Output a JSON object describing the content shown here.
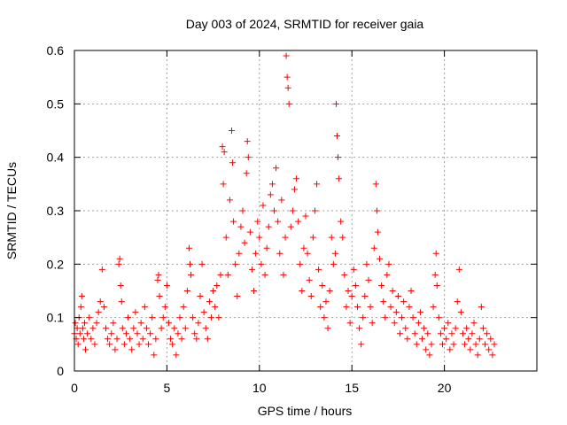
{
  "chart_data": {
    "type": "scatter",
    "title": "Day 003 of 2024, SRMTID for receiver gaia",
    "xlabel": "GPS time / hours",
    "ylabel": "SRMTID / TECUs",
    "xlim": [
      0,
      25
    ],
    "ylim": [
      0,
      0.6
    ],
    "x_ticks": [
      0,
      5,
      10,
      15,
      20
    ],
    "y_ticks": [
      0,
      0.1,
      0.2,
      0.3,
      0.4,
      0.5,
      0.6
    ],
    "x_tick_labels": [
      "0",
      "5",
      "10",
      "15",
      "20"
    ],
    "y_tick_labels": [
      "0",
      "0.1",
      "0.2",
      "0.3",
      "0.4",
      "0.5",
      "0.6"
    ],
    "grid": true,
    "marker": "plus",
    "series_color": "#ff0000",
    "series": [
      {
        "name": "SRMTID",
        "points": [
          [
            0.0,
            0.07
          ],
          [
            0.05,
            0.09
          ],
          [
            0.1,
            0.06
          ],
          [
            0.15,
            0.08
          ],
          [
            0.2,
            0.05
          ],
          [
            0.25,
            0.1
          ],
          [
            0.3,
            0.07
          ],
          [
            0.35,
            0.12
          ],
          [
            0.4,
            0.14
          ],
          [
            0.45,
            0.08
          ],
          [
            0.5,
            0.06
          ],
          [
            0.55,
            0.09
          ],
          [
            0.6,
            0.04
          ],
          [
            0.7,
            0.07
          ],
          [
            0.8,
            0.1
          ],
          [
            0.9,
            0.06
          ],
          [
            1.0,
            0.08
          ],
          [
            1.1,
            0.05
          ],
          [
            1.2,
            0.09
          ],
          [
            1.3,
            0.11
          ],
          [
            1.4,
            0.13
          ],
          [
            1.5,
            0.19
          ],
          [
            1.6,
            0.12
          ],
          [
            1.7,
            0.08
          ],
          [
            1.8,
            0.06
          ],
          [
            1.9,
            0.05
          ],
          [
            2.0,
            0.07
          ],
          [
            2.1,
            0.09
          ],
          [
            2.2,
            0.04
          ],
          [
            2.3,
            0.06
          ],
          [
            2.4,
            0.2
          ],
          [
            2.45,
            0.21
          ],
          [
            2.5,
            0.16
          ],
          [
            2.55,
            0.13
          ],
          [
            2.6,
            0.08
          ],
          [
            2.7,
            0.05
          ],
          [
            2.8,
            0.07
          ],
          [
            2.9,
            0.1
          ],
          [
            3.0,
            0.06
          ],
          [
            3.1,
            0.04
          ],
          [
            3.2,
            0.08
          ],
          [
            3.3,
            0.11
          ],
          [
            3.4,
            0.07
          ],
          [
            3.5,
            0.05
          ],
          [
            3.6,
            0.09
          ],
          [
            3.7,
            0.06
          ],
          [
            3.8,
            0.12
          ],
          [
            3.9,
            0.08
          ],
          [
            4.0,
            0.05
          ],
          [
            4.1,
            0.07
          ],
          [
            4.2,
            0.1
          ],
          [
            4.3,
            0.03
          ],
          [
            4.4,
            0.06
          ],
          [
            4.5,
            0.17
          ],
          [
            4.55,
            0.18
          ],
          [
            4.6,
            0.14
          ],
          [
            4.7,
            0.08
          ],
          [
            4.8,
            0.1
          ],
          [
            4.9,
            0.12
          ],
          [
            5.0,
            0.16
          ],
          [
            5.1,
            0.09
          ],
          [
            5.2,
            0.06
          ],
          [
            5.3,
            0.05
          ],
          [
            5.4,
            0.08
          ],
          [
            5.5,
            0.03
          ],
          [
            5.6,
            0.07
          ],
          [
            5.7,
            0.1
          ],
          [
            5.8,
            0.06
          ],
          [
            5.9,
            0.12
          ],
          [
            6.0,
            0.08
          ],
          [
            6.1,
            0.15
          ],
          [
            6.2,
            0.23
          ],
          [
            6.25,
            0.2
          ],
          [
            6.3,
            0.18
          ],
          [
            6.4,
            0.1
          ],
          [
            6.5,
            0.07
          ],
          [
            6.6,
            0.06
          ],
          [
            6.7,
            0.09
          ],
          [
            6.8,
            0.14
          ],
          [
            6.9,
            0.2
          ],
          [
            7.0,
            0.11
          ],
          [
            7.1,
            0.08
          ],
          [
            7.2,
            0.06
          ],
          [
            7.3,
            0.13
          ],
          [
            7.4,
            0.1
          ],
          [
            7.5,
            0.15
          ],
          [
            7.6,
            0.12
          ],
          [
            7.7,
            0.16
          ],
          [
            7.8,
            0.1
          ],
          [
            7.9,
            0.18
          ],
          [
            8.0,
            0.42
          ],
          [
            8.05,
            0.35
          ],
          [
            8.1,
            0.41
          ],
          [
            8.2,
            0.25
          ],
          [
            8.3,
            0.18
          ],
          [
            8.4,
            0.32
          ],
          [
            8.5,
            0.45
          ],
          [
            8.55,
            0.39
          ],
          [
            8.6,
            0.28
          ],
          [
            8.7,
            0.2
          ],
          [
            8.8,
            0.14
          ],
          [
            8.9,
            0.22
          ],
          [
            9.0,
            0.27
          ],
          [
            9.1,
            0.3
          ],
          [
            9.2,
            0.24
          ],
          [
            9.3,
            0.37
          ],
          [
            9.35,
            0.43
          ],
          [
            9.4,
            0.4
          ],
          [
            9.5,
            0.26
          ],
          [
            9.6,
            0.19
          ],
          [
            9.7,
            0.15
          ],
          [
            9.8,
            0.22
          ],
          [
            9.9,
            0.28
          ],
          [
            10.0,
            0.25
          ],
          [
            10.1,
            0.2
          ],
          [
            10.2,
            0.31
          ],
          [
            10.3,
            0.18
          ],
          [
            10.4,
            0.23
          ],
          [
            10.5,
            0.27
          ],
          [
            10.6,
            0.33
          ],
          [
            10.7,
            0.35
          ],
          [
            10.8,
            0.3
          ],
          [
            10.9,
            0.38
          ],
          [
            11.0,
            0.28
          ],
          [
            11.1,
            0.22
          ],
          [
            11.2,
            0.32
          ],
          [
            11.3,
            0.18
          ],
          [
            11.4,
            0.25
          ],
          [
            11.45,
            0.59
          ],
          [
            11.5,
            0.55
          ],
          [
            11.55,
            0.53
          ],
          [
            11.6,
            0.5
          ],
          [
            11.7,
            0.27
          ],
          [
            11.8,
            0.3
          ],
          [
            11.9,
            0.34
          ],
          [
            12.0,
            0.36
          ],
          [
            12.1,
            0.28
          ],
          [
            12.2,
            0.2
          ],
          [
            12.3,
            0.15
          ],
          [
            12.4,
            0.23
          ],
          [
            12.5,
            0.29
          ],
          [
            12.6,
            0.22
          ],
          [
            12.7,
            0.17
          ],
          [
            12.8,
            0.14
          ],
          [
            12.9,
            0.25
          ],
          [
            13.0,
            0.3
          ],
          [
            13.1,
            0.35
          ],
          [
            13.2,
            0.19
          ],
          [
            13.3,
            0.12
          ],
          [
            13.4,
            0.16
          ],
          [
            13.5,
            0.1
          ],
          [
            13.6,
            0.13
          ],
          [
            13.7,
            0.08
          ],
          [
            13.8,
            0.15
          ],
          [
            13.9,
            0.25
          ],
          [
            14.0,
            0.2
          ],
          [
            14.1,
            0.22
          ],
          [
            14.15,
            0.5
          ],
          [
            14.2,
            0.44
          ],
          [
            14.25,
            0.4
          ],
          [
            14.3,
            0.36
          ],
          [
            14.4,
            0.28
          ],
          [
            14.5,
            0.25
          ],
          [
            14.6,
            0.18
          ],
          [
            14.7,
            0.12
          ],
          [
            14.8,
            0.15
          ],
          [
            14.9,
            0.09
          ],
          [
            15.0,
            0.14
          ],
          [
            15.1,
            0.19
          ],
          [
            15.2,
            0.16
          ],
          [
            15.3,
            0.12
          ],
          [
            15.4,
            0.08
          ],
          [
            15.5,
            0.05
          ],
          [
            15.6,
            0.1
          ],
          [
            15.7,
            0.14
          ],
          [
            15.8,
            0.2
          ],
          [
            15.9,
            0.17
          ],
          [
            16.0,
            0.12
          ],
          [
            16.1,
            0.09
          ],
          [
            16.2,
            0.23
          ],
          [
            16.3,
            0.35
          ],
          [
            16.35,
            0.3
          ],
          [
            16.4,
            0.26
          ],
          [
            16.5,
            0.21
          ],
          [
            16.6,
            0.16
          ],
          [
            16.7,
            0.13
          ],
          [
            16.8,
            0.1
          ],
          [
            16.9,
            0.18
          ],
          [
            17.0,
            0.2
          ],
          [
            17.1,
            0.12
          ],
          [
            17.2,
            0.15
          ],
          [
            17.3,
            0.09
          ],
          [
            17.4,
            0.11
          ],
          [
            17.5,
            0.14
          ],
          [
            17.6,
            0.07
          ],
          [
            17.7,
            0.1
          ],
          [
            17.8,
            0.13
          ],
          [
            17.9,
            0.08
          ],
          [
            18.0,
            0.06
          ],
          [
            18.1,
            0.12
          ],
          [
            18.2,
            0.15
          ],
          [
            18.3,
            0.1
          ],
          [
            18.4,
            0.07
          ],
          [
            18.5,
            0.05
          ],
          [
            18.6,
            0.09
          ],
          [
            18.7,
            0.11
          ],
          [
            18.8,
            0.06
          ],
          [
            18.9,
            0.08
          ],
          [
            19.0,
            0.04
          ],
          [
            19.1,
            0.07
          ],
          [
            19.2,
            0.03
          ],
          [
            19.3,
            0.05
          ],
          [
            19.4,
            0.12
          ],
          [
            19.5,
            0.18
          ],
          [
            19.55,
            0.22
          ],
          [
            19.6,
            0.16
          ],
          [
            19.7,
            0.1
          ],
          [
            19.8,
            0.07
          ],
          [
            19.9,
            0.05
          ],
          [
            20.0,
            0.08
          ],
          [
            20.1,
            0.06
          ],
          [
            20.2,
            0.09
          ],
          [
            20.3,
            0.04
          ],
          [
            20.4,
            0.07
          ],
          [
            20.5,
            0.05
          ],
          [
            20.6,
            0.08
          ],
          [
            20.7,
            0.13
          ],
          [
            20.8,
            0.19
          ],
          [
            20.9,
            0.11
          ],
          [
            21.0,
            0.07
          ],
          [
            21.1,
            0.05
          ],
          [
            21.2,
            0.08
          ],
          [
            21.3,
            0.06
          ],
          [
            21.4,
            0.04
          ],
          [
            21.5,
            0.07
          ],
          [
            21.6,
            0.09
          ],
          [
            21.7,
            0.05
          ],
          [
            21.8,
            0.03
          ],
          [
            21.9,
            0.06
          ],
          [
            22.0,
            0.12
          ],
          [
            22.1,
            0.08
          ],
          [
            22.2,
            0.05
          ],
          [
            22.3,
            0.07
          ],
          [
            22.4,
            0.04
          ],
          [
            22.5,
            0.06
          ],
          [
            22.6,
            0.03
          ],
          [
            22.7,
            0.05
          ]
        ]
      }
    ]
  }
}
